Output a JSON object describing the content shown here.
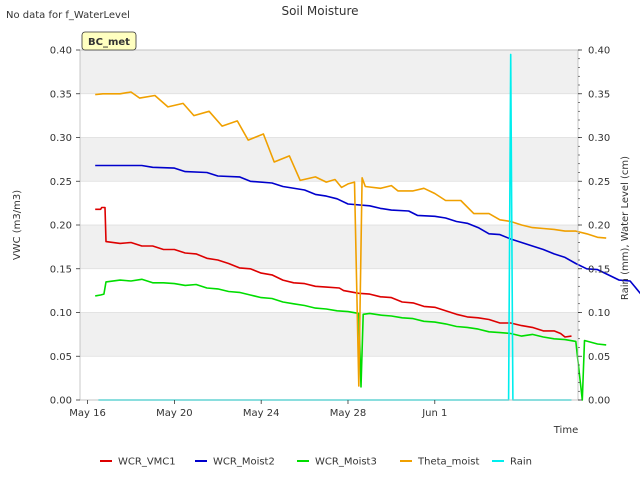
{
  "header": {
    "title": "Soil Moisture",
    "nodata_note": "No data for f_WaterLevel",
    "station_badge": "BC_met"
  },
  "chart_data": {
    "type": "line",
    "title": "Soil Moisture",
    "xlabel": "Time",
    "ylabel": "VWC (m3/m3)",
    "ylabel_right": "Rain (mm), Water Level (cm)",
    "x_unit": "day_of_year_2023_style_day_index",
    "xlim": [
      "May 16",
      "Jun 2.9"
    ],
    "ylim": [
      0.0,
      0.4
    ],
    "ylim_right": [
      0.0,
      0.4
    ],
    "x_ticks": [
      {
        "day": 0,
        "label": "May 16"
      },
      {
        "day": 4,
        "label": "May 20"
      },
      {
        "day": 8,
        "label": "May 24"
      },
      {
        "day": 12,
        "label": "May 28"
      },
      {
        "day": 16,
        "label": "Jun 1"
      }
    ],
    "y_ticks": [
      "0.00",
      "0.05",
      "0.10",
      "0.15",
      "0.20",
      "0.25",
      "0.30",
      "0.35",
      "0.40"
    ],
    "y_ticks_right": [
      "0.00",
      "0.05",
      "0.10",
      "0.15",
      "0.20",
      "0.25",
      "0.30",
      "0.35",
      "0.40"
    ],
    "grid": "horizontal",
    "background_bands": true,
    "legend_placement": "bottom",
    "series": [
      {
        "name": "WCR_VMC1",
        "color": "#dd0000",
        "points": [
          [
            0.35,
            0.218
          ],
          [
            0.6,
            0.218
          ],
          [
            0.65,
            0.22
          ],
          [
            0.8,
            0.22
          ],
          [
            0.85,
            0.181
          ],
          [
            1.5,
            0.179
          ],
          [
            2,
            0.18
          ],
          [
            2.5,
            0.176
          ],
          [
            3,
            0.176
          ],
          [
            3.5,
            0.172
          ],
          [
            4,
            0.172
          ],
          [
            4.5,
            0.168
          ],
          [
            5,
            0.167
          ],
          [
            5.5,
            0.162
          ],
          [
            6,
            0.16
          ],
          [
            6.5,
            0.156
          ],
          [
            7,
            0.151
          ],
          [
            7.5,
            0.15
          ],
          [
            8,
            0.145
          ],
          [
            8.5,
            0.143
          ],
          [
            9,
            0.137
          ],
          [
            9.5,
            0.134
          ],
          [
            10,
            0.133
          ],
          [
            10.5,
            0.13
          ],
          [
            11,
            0.129
          ],
          [
            11.6,
            0.128
          ],
          [
            11.8,
            0.125
          ],
          [
            12.5,
            0.122
          ],
          [
            13,
            0.121
          ],
          [
            13.5,
            0.118
          ],
          [
            14,
            0.117
          ],
          [
            14.5,
            0.112
          ],
          [
            15,
            0.111
          ],
          [
            15.5,
            0.107
          ],
          [
            16,
            0.106
          ],
          [
            16.5,
            0.102
          ],
          [
            17,
            0.098
          ],
          [
            17.5,
            0.095
          ],
          [
            18,
            0.094
          ],
          [
            18.5,
            0.092
          ],
          [
            19,
            0.088
          ],
          [
            19.5,
            0.088
          ],
          [
            20,
            0.085
          ],
          [
            20.5,
            0.083
          ],
          [
            21,
            0.079
          ],
          [
            21.5,
            0.079
          ],
          [
            21.8,
            0.076
          ],
          [
            22,
            0.072
          ],
          [
            22.3,
            0.073
          ]
        ]
      },
      {
        "name": "WCR_Moist2",
        "color": "#0000cc",
        "points": [
          [
            0.35,
            0.268
          ],
          [
            1,
            0.268
          ],
          [
            2.5,
            0.268
          ],
          [
            3,
            0.266
          ],
          [
            4,
            0.265
          ],
          [
            4.5,
            0.261
          ],
          [
            5.5,
            0.26
          ],
          [
            6,
            0.256
          ],
          [
            7,
            0.255
          ],
          [
            7.5,
            0.25
          ],
          [
            8.5,
            0.248
          ],
          [
            9,
            0.244
          ],
          [
            10,
            0.24
          ],
          [
            10.5,
            0.235
          ],
          [
            11,
            0.233
          ],
          [
            11.5,
            0.23
          ],
          [
            12,
            0.224
          ],
          [
            13,
            0.222
          ],
          [
            13.5,
            0.219
          ],
          [
            14,
            0.217
          ],
          [
            14.8,
            0.216
          ],
          [
            15.2,
            0.211
          ],
          [
            16,
            0.21
          ],
          [
            16.5,
            0.208
          ],
          [
            17,
            0.204
          ],
          [
            17.5,
            0.202
          ],
          [
            18,
            0.197
          ],
          [
            18.5,
            0.19
          ],
          [
            19,
            0.189
          ],
          [
            19.5,
            0.184
          ],
          [
            20,
            0.18
          ],
          [
            20.5,
            0.176
          ],
          [
            21,
            0.172
          ],
          [
            21.5,
            0.167
          ],
          [
            22,
            0.163
          ],
          [
            22.5,
            0.156
          ],
          [
            23,
            0.15
          ],
          [
            23.5,
            0.149
          ],
          [
            24,
            0.143
          ],
          [
            24.5,
            0.137
          ],
          [
            25,
            0.136
          ],
          [
            25.5,
            0.121
          ],
          [
            25.9,
            0.121
          ]
        ]
      },
      {
        "name": "WCR_Moist3",
        "color": "#00dd00",
        "points": [
          [
            0.35,
            0.119
          ],
          [
            0.6,
            0.12
          ],
          [
            0.75,
            0.121
          ],
          [
            0.85,
            0.135
          ],
          [
            1.5,
            0.137
          ],
          [
            2,
            0.136
          ],
          [
            2.5,
            0.138
          ],
          [
            3,
            0.134
          ],
          [
            3.5,
            0.134
          ],
          [
            4,
            0.133
          ],
          [
            4.5,
            0.131
          ],
          [
            5,
            0.132
          ],
          [
            5.5,
            0.128
          ],
          [
            6,
            0.127
          ],
          [
            6.5,
            0.124
          ],
          [
            7,
            0.123
          ],
          [
            7.5,
            0.12
          ],
          [
            8,
            0.117
          ],
          [
            8.5,
            0.116
          ],
          [
            9,
            0.112
          ],
          [
            9.5,
            0.11
          ],
          [
            10,
            0.108
          ],
          [
            10.5,
            0.105
          ],
          [
            11,
            0.104
          ],
          [
            11.5,
            0.102
          ],
          [
            12,
            0.101
          ],
          [
            12.5,
            0.099
          ],
          [
            12.6,
            0.015
          ],
          [
            12.7,
            0.098
          ],
          [
            13,
            0.099
          ],
          [
            13.5,
            0.097
          ],
          [
            14,
            0.096
          ],
          [
            14.5,
            0.094
          ],
          [
            15,
            0.093
          ],
          [
            15.5,
            0.09
          ],
          [
            16,
            0.089
          ],
          [
            16.5,
            0.087
          ],
          [
            17,
            0.084
          ],
          [
            17.5,
            0.083
          ],
          [
            18,
            0.081
          ],
          [
            18.5,
            0.078
          ],
          [
            19,
            0.077
          ],
          [
            19.5,
            0.076
          ],
          [
            20,
            0.073
          ],
          [
            20.5,
            0.075
          ],
          [
            21,
            0.072
          ],
          [
            21.5,
            0.07
          ],
          [
            22,
            0.069
          ],
          [
            22.5,
            0.067
          ],
          [
            22.8,
            0.0
          ],
          [
            22.9,
            0.068
          ],
          [
            23.5,
            0.064
          ],
          [
            23.9,
            0.063
          ]
        ]
      },
      {
        "name": "Theta_moist",
        "color": "#f0a000",
        "points": [
          [
            0.35,
            0.349
          ],
          [
            0.7,
            0.35
          ],
          [
            1.5,
            0.35
          ],
          [
            2,
            0.352
          ],
          [
            2.4,
            0.345
          ],
          [
            3.1,
            0.348
          ],
          [
            3.7,
            0.335
          ],
          [
            4.4,
            0.339
          ],
          [
            4.9,
            0.325
          ],
          [
            5.6,
            0.33
          ],
          [
            6.2,
            0.313
          ],
          [
            6.9,
            0.319
          ],
          [
            7.4,
            0.297
          ],
          [
            8.1,
            0.304
          ],
          [
            8.6,
            0.272
          ],
          [
            9.3,
            0.279
          ],
          [
            9.8,
            0.251
          ],
          [
            10.5,
            0.255
          ],
          [
            11,
            0.249
          ],
          [
            11.4,
            0.252
          ],
          [
            11.7,
            0.243
          ],
          [
            12,
            0.247
          ],
          [
            12.3,
            0.249
          ],
          [
            12.5,
            0.016
          ],
          [
            12.65,
            0.254
          ],
          [
            12.8,
            0.244
          ],
          [
            13.5,
            0.242
          ],
          [
            14,
            0.245
          ],
          [
            14.3,
            0.239
          ],
          [
            15,
            0.239
          ],
          [
            15.5,
            0.242
          ],
          [
            16,
            0.236
          ],
          [
            16.5,
            0.228
          ],
          [
            17.2,
            0.228
          ],
          [
            17.8,
            0.213
          ],
          [
            18.5,
            0.213
          ],
          [
            19,
            0.206
          ],
          [
            19.5,
            0.204
          ],
          [
            20,
            0.2
          ],
          [
            20.5,
            0.197
          ],
          [
            21,
            0.196
          ],
          [
            21.5,
            0.195
          ],
          [
            22,
            0.193
          ],
          [
            22.5,
            0.193
          ],
          [
            23,
            0.19
          ],
          [
            23.5,
            0.186
          ],
          [
            23.9,
            0.185
          ]
        ]
      },
      {
        "name": "Rain",
        "axis": "right",
        "color": "#00eeee",
        "points": [
          [
            0.5,
            0.0
          ],
          [
            19.4,
            0.0
          ],
          [
            19.5,
            0.395
          ],
          [
            19.6,
            0.0
          ],
          [
            22.3,
            0.0
          ]
        ]
      }
    ]
  }
}
